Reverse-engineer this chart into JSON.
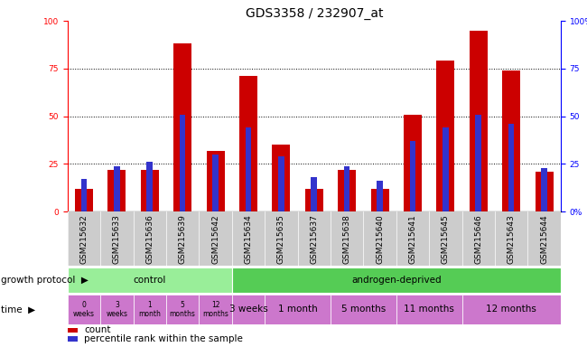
{
  "title": "GDS3358 / 232907_at",
  "samples": [
    "GSM215632",
    "GSM215633",
    "GSM215636",
    "GSM215639",
    "GSM215642",
    "GSM215634",
    "GSM215635",
    "GSM215637",
    "GSM215638",
    "GSM215640",
    "GSM215641",
    "GSM215645",
    "GSM215646",
    "GSM215643",
    "GSM215644"
  ],
  "count_values": [
    12,
    22,
    22,
    88,
    32,
    71,
    35,
    12,
    22,
    12,
    51,
    79,
    95,
    74,
    21
  ],
  "percentile_values": [
    17,
    24,
    26,
    51,
    30,
    44,
    29,
    18,
    24,
    16,
    37,
    44,
    51,
    46,
    23
  ],
  "ylim": [
    0,
    100
  ],
  "grid_values": [
    25,
    50,
    75
  ],
  "bar_color_red": "#CC0000",
  "bar_color_blue": "#3333CC",
  "bar_width": 0.55,
  "blue_bar_width": 0.18,
  "control_color": "#99EE99",
  "androgen_color": "#55CC55",
  "time_color": "#CC77CC",
  "protocol_label": "growth protocol",
  "time_label": "time",
  "control_time_labels": [
    "0\nweeks",
    "3\nweeks",
    "1\nmonth",
    "5\nmonths",
    "12\nmonths"
  ],
  "androgen_time_labels": [
    "3 weeks",
    "1 month",
    "5 months",
    "11 months",
    "12 months"
  ],
  "androgen_time_widths": [
    1,
    2,
    2,
    2,
    3
  ],
  "legend_count_label": "count",
  "legend_percentile_label": "percentile rank within the sample",
  "title_fontsize": 10,
  "tick_fontsize": 6.5,
  "label_fontsize": 7.5,
  "annot_fontsize": 7.5,
  "n_control": 5,
  "n_total": 15
}
